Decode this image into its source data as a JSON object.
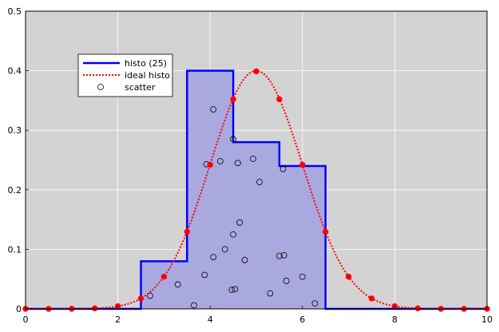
{
  "chart_data": {
    "type": "histogram-overlay",
    "title": "",
    "xlabel": "",
    "ylabel": "",
    "xlim": [
      0,
      10
    ],
    "ylim": [
      0,
      0.5
    ],
    "xticks": [
      0,
      2,
      4,
      6,
      8,
      10
    ],
    "yticks": [
      0,
      0.1,
      0.2,
      0.3,
      0.4,
      0.5
    ],
    "grid": true,
    "legend_placement": "upper-left",
    "colors": {
      "plot_background": "#d3d3d3",
      "grid": "#ffffff",
      "histo_line": "#0000ff",
      "histo_fill": "#a9a9e0",
      "ideal": "#ff0000",
      "scatter": "#000000"
    },
    "series": [
      {
        "name": "histo (25)",
        "kind": "step-histogram",
        "bins": [
          {
            "x0": 2.5,
            "x1": 3.5,
            "y": 0.08
          },
          {
            "x0": 3.5,
            "x1": 4.5,
            "y": 0.4
          },
          {
            "x0": 4.5,
            "x1": 5.5,
            "y": 0.28
          },
          {
            "x0": 5.5,
            "x1": 6.5,
            "y": 0.24
          }
        ]
      },
      {
        "name": "ideal histo",
        "kind": "gaussian",
        "mean": 5,
        "sigma": 1,
        "peak": 0.4,
        "x": [
          0,
          0.5,
          1,
          1.5,
          2,
          2.5,
          3,
          3.5,
          4,
          4.5,
          5,
          5.5,
          6,
          6.5,
          7,
          7.5,
          8,
          8.5,
          9,
          9.5,
          10
        ],
        "y": [
          0.0,
          0.0,
          0.0001,
          0.0009,
          0.0044,
          0.0175,
          0.054,
          0.1295,
          0.242,
          0.3521,
          0.3989,
          0.3521,
          0.242,
          0.1295,
          0.054,
          0.0175,
          0.0044,
          0.0009,
          0.0001,
          0.0,
          0.0
        ]
      },
      {
        "name": "scatter",
        "kind": "scatter",
        "points": [
          [
            2.7,
            0.022
          ],
          [
            3.3,
            0.041
          ],
          [
            3.65,
            0.006
          ],
          [
            3.88,
            0.057
          ],
          [
            3.92,
            0.243
          ],
          [
            4.07,
            0.335
          ],
          [
            4.07,
            0.087
          ],
          [
            4.22,
            0.248
          ],
          [
            4.32,
            0.1
          ],
          [
            4.47,
            0.032
          ],
          [
            4.5,
            0.285
          ],
          [
            4.5,
            0.125
          ],
          [
            4.54,
            0.033
          ],
          [
            4.6,
            0.245
          ],
          [
            4.64,
            0.145
          ],
          [
            4.75,
            0.082
          ],
          [
            4.93,
            0.252
          ],
          [
            5.07,
            0.213
          ],
          [
            5.3,
            0.026
          ],
          [
            5.5,
            0.089
          ],
          [
            5.58,
            0.235
          ],
          [
            5.6,
            0.09
          ],
          [
            5.65,
            0.047
          ],
          [
            6.0,
            0.054
          ],
          [
            6.27,
            0.009
          ]
        ]
      }
    ]
  }
}
